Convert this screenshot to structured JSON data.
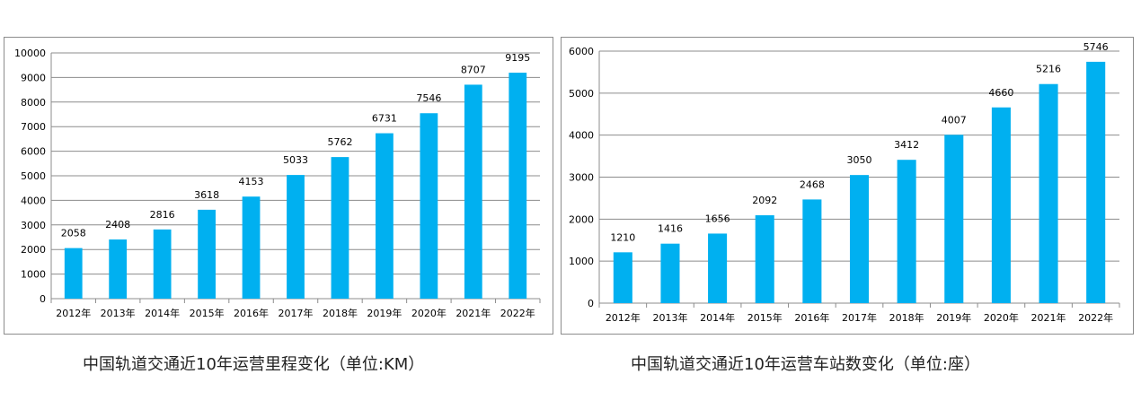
{
  "colors": {
    "bar": "#00b0f0",
    "grid": "#8c8c8c",
    "axis": "#8c8c8c",
    "text": "#000000"
  },
  "chart_data": [
    {
      "type": "bar",
      "title": "",
      "xlabel": "",
      "ylabel": "",
      "categories": [
        "2012年",
        "2013年",
        "2014年",
        "2015年",
        "2016年",
        "2017年",
        "2018年",
        "2019年",
        "2020年",
        "2021年",
        "2022年"
      ],
      "values": [
        2058,
        2408,
        2816,
        3618,
        4153,
        5033,
        5762,
        6731,
        7546,
        8707,
        9195
      ],
      "ylim": [
        0,
        10000
      ],
      "yticks": [
        0,
        1000,
        2000,
        3000,
        4000,
        5000,
        6000,
        7000,
        8000,
        9000,
        10000
      ],
      "grid": true,
      "legend": "none"
    },
    {
      "type": "bar",
      "title": "",
      "xlabel": "",
      "ylabel": "",
      "categories": [
        "2012年",
        "2013年",
        "2014年",
        "2015年",
        "2016年",
        "2017年",
        "2018年",
        "2019年",
        "2020年",
        "2021年",
        "2022年"
      ],
      "values": [
        1210,
        1416,
        1656,
        2092,
        2468,
        3050,
        3412,
        4007,
        4660,
        5216,
        5746
      ],
      "ylim": [
        0,
        6000
      ],
      "yticks": [
        0,
        1000,
        2000,
        3000,
        4000,
        5000,
        6000
      ],
      "grid": true,
      "legend": "none"
    }
  ],
  "captions": {
    "left": "中国轨道交通近10年运营里程变化（单位:KM）",
    "right": "中国轨道交通近10年运营车站数变化（单位:座）"
  }
}
